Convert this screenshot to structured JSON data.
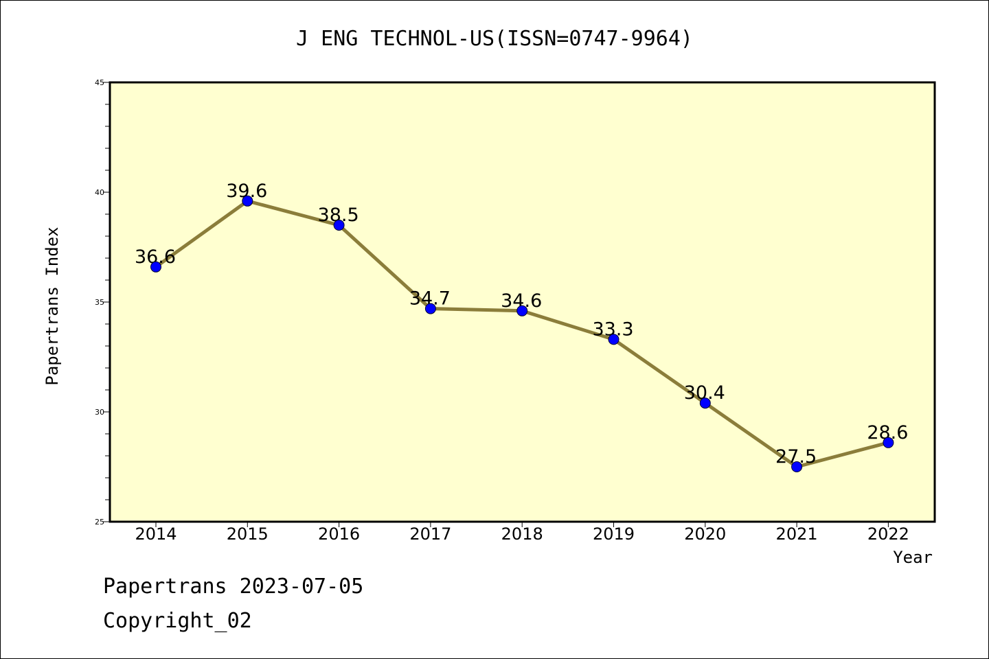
{
  "chart_data": {
    "type": "line",
    "title": "J ENG TECHNOL-US(ISSN=0747-9964)",
    "xlabel": "Year",
    "ylabel": "Papertrans Index",
    "categories": [
      "2014",
      "2015",
      "2016",
      "2017",
      "2018",
      "2019",
      "2020",
      "2021",
      "2022"
    ],
    "series": [
      {
        "values": [
          36.6,
          39.6,
          38.5,
          34.7,
          34.6,
          33.3,
          30.4,
          27.5,
          28.6
        ],
        "labels": [
          "36.6",
          "39.6",
          "38.5",
          "34.7",
          "34.6",
          "33.3",
          "30.4",
          "27.5",
          "28.6"
        ]
      }
    ],
    "ylim": [
      25,
      45
    ],
    "yticks": [
      "25",
      "30",
      "35",
      "40",
      "45"
    ],
    "grid": false,
    "colors": {
      "plot_background": "#FFFFD0",
      "line": "#8B7D3A",
      "marker": "#0000FF"
    }
  },
  "footer": {
    "line1": "Papertrans 2023-07-05",
    "line2": "Copyright_02"
  }
}
